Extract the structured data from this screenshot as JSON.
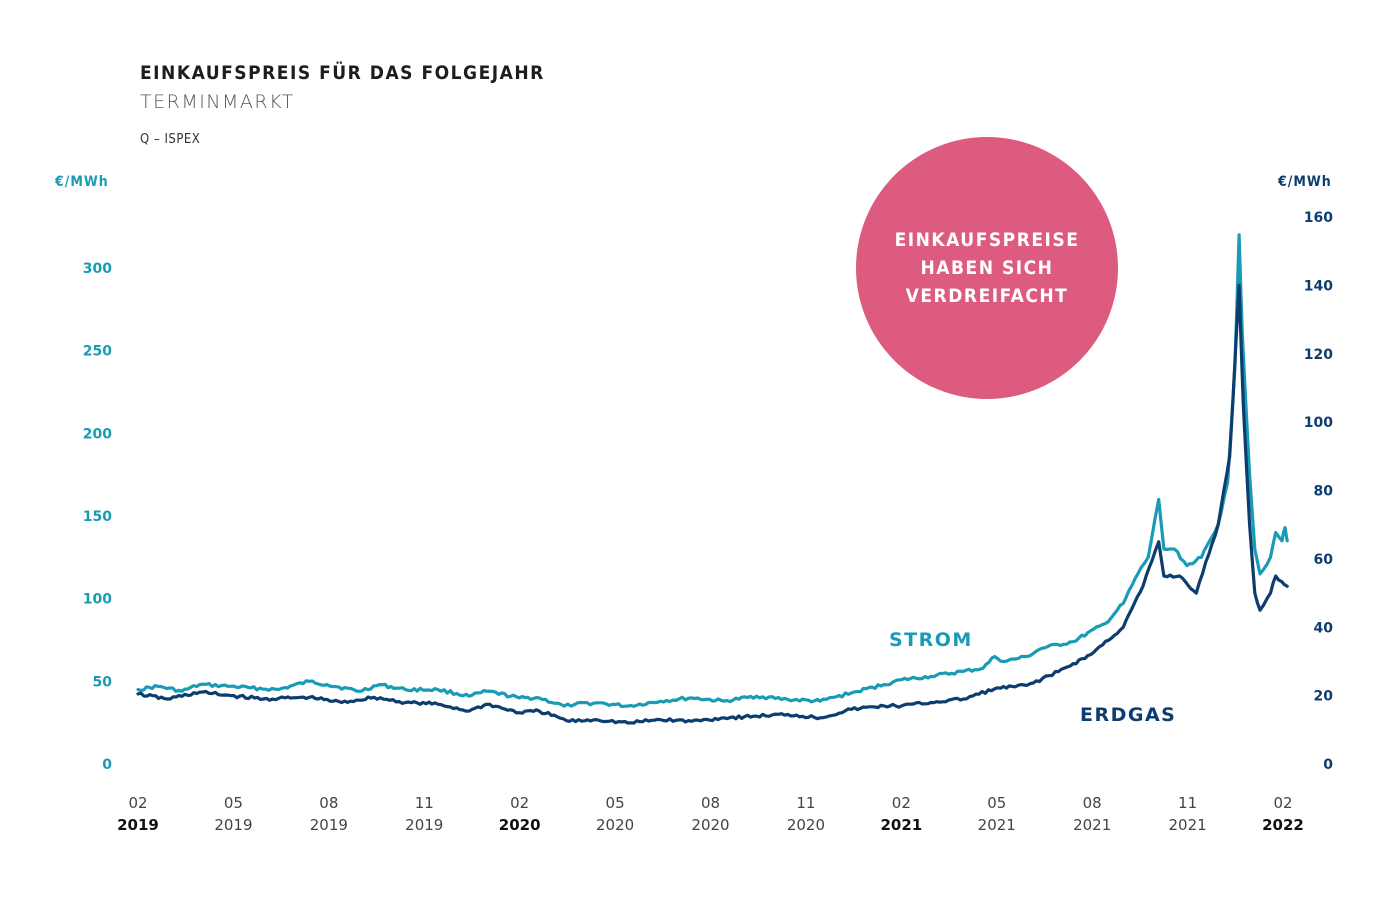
{
  "chart_data": {
    "type": "line",
    "title": "EINKAUFSPREIS FÜR DAS FOLGEJAHR",
    "subtitle": "TERMINMARKT",
    "source": "Q – ISPEX",
    "y_left_label": "€/MWh",
    "y_right_label": "€/MWh",
    "y_left_ticks": [
      0,
      50,
      100,
      150,
      200,
      250,
      300
    ],
    "y_right_ticks": [
      0,
      20,
      40,
      60,
      80,
      100,
      120,
      140,
      160
    ],
    "ylim_left": [
      0,
      330
    ],
    "ylim_right": [
      0,
      165
    ],
    "x_ticks": [
      {
        "month": "02",
        "year": "2019",
        "year_bold": true
      },
      {
        "month": "05",
        "year": "2019",
        "year_bold": false
      },
      {
        "month": "08",
        "year": "2019",
        "year_bold": false
      },
      {
        "month": "11",
        "year": "2019",
        "year_bold": false
      },
      {
        "month": "02",
        "year": "2020",
        "year_bold": true
      },
      {
        "month": "05",
        "year": "2020",
        "year_bold": false
      },
      {
        "month": "08",
        "year": "2020",
        "year_bold": false
      },
      {
        "month": "11",
        "year": "2020",
        "year_bold": false
      },
      {
        "month": "02",
        "year": "2021",
        "year_bold": true
      },
      {
        "month": "05",
        "year": "2021",
        "year_bold": false
      },
      {
        "month": "08",
        "year": "2021",
        "year_bold": false
      },
      {
        "month": "11",
        "year": "2021",
        "year_bold": false
      },
      {
        "month": "02",
        "year": "2022",
        "year_bold": true
      }
    ],
    "series": [
      {
        "name": "STROM",
        "axis": "left",
        "color": "#1a9bb5",
        "points": [
          [
            "2019-02-01",
            45
          ],
          [
            "2019-02-20",
            47
          ],
          [
            "2019-03-15",
            44
          ],
          [
            "2019-04-01",
            48
          ],
          [
            "2019-05-01",
            47
          ],
          [
            "2019-05-20",
            46
          ],
          [
            "2019-06-15",
            45
          ],
          [
            "2019-07-15",
            50
          ],
          [
            "2019-08-01",
            48
          ],
          [
            "2019-09-01",
            44
          ],
          [
            "2019-09-20",
            48
          ],
          [
            "2019-10-15",
            45
          ],
          [
            "2019-11-15",
            45
          ],
          [
            "2019-12-15",
            41
          ],
          [
            "2020-01-01",
            44
          ],
          [
            "2020-02-01",
            40
          ],
          [
            "2020-02-20",
            40
          ],
          [
            "2020-03-15",
            35
          ],
          [
            "2020-03-25",
            36
          ],
          [
            "2020-04-15",
            37
          ],
          [
            "2020-05-15",
            35
          ],
          [
            "2020-06-15",
            38
          ],
          [
            "2020-07-15",
            40
          ],
          [
            "2020-08-15",
            38
          ],
          [
            "2020-09-15",
            41
          ],
          [
            "2020-10-15",
            39
          ],
          [
            "2020-11-15",
            38
          ],
          [
            "2020-12-15",
            43
          ],
          [
            "2021-01-15",
            48
          ],
          [
            "2021-02-01",
            51
          ],
          [
            "2021-03-01",
            53
          ],
          [
            "2021-04-01",
            56
          ],
          [
            "2021-04-20",
            58
          ],
          [
            "2021-05-01",
            65
          ],
          [
            "2021-05-10",
            62
          ],
          [
            "2021-06-01",
            65
          ],
          [
            "2021-06-15",
            70
          ],
          [
            "2021-07-15",
            74
          ],
          [
            "2021-08-15",
            85
          ],
          [
            "2021-09-01",
            97
          ],
          [
            "2021-09-15",
            115
          ],
          [
            "2021-09-25",
            125
          ],
          [
            "2021-10-05",
            160
          ],
          [
            "2021-10-10",
            130
          ],
          [
            "2021-10-20",
            130
          ],
          [
            "2021-11-01",
            120
          ],
          [
            "2021-11-15",
            125
          ],
          [
            "2021-12-01",
            145
          ],
          [
            "2021-12-10",
            170
          ],
          [
            "2021-12-17",
            240
          ],
          [
            "2021-12-21",
            320
          ],
          [
            "2021-12-24",
            260
          ],
          [
            "2021-12-31",
            175
          ],
          [
            "2022-01-05",
            130
          ],
          [
            "2022-01-10",
            115
          ],
          [
            "2022-01-20",
            125
          ],
          [
            "2022-01-25",
            140
          ],
          [
            "2022-01-31",
            135
          ],
          [
            "2022-02-03",
            143
          ],
          [
            "2022-02-05",
            135
          ]
        ]
      },
      {
        "name": "ERDGAS",
        "axis": "right",
        "color": "#0d3d6e",
        "points": [
          [
            "2019-02-01",
            20.5
          ],
          [
            "2019-03-01",
            19.0
          ],
          [
            "2019-04-01",
            21.0
          ],
          [
            "2019-05-01",
            20.0
          ],
          [
            "2019-06-01",
            19.0
          ],
          [
            "2019-07-15",
            19.5
          ],
          [
            "2019-08-15",
            18.0
          ],
          [
            "2019-09-15",
            19.5
          ],
          [
            "2019-10-15",
            18.0
          ],
          [
            "2019-11-15",
            17.5
          ],
          [
            "2019-12-15",
            15.5
          ],
          [
            "2020-01-01",
            17.5
          ],
          [
            "2020-02-01",
            15.0
          ],
          [
            "2020-02-20",
            15.5
          ],
          [
            "2020-03-20",
            12.5
          ],
          [
            "2020-04-15",
            13.0
          ],
          [
            "2020-05-15",
            12.0
          ],
          [
            "2020-06-15",
            13.0
          ],
          [
            "2020-07-15",
            12.5
          ],
          [
            "2020-08-15",
            13.5
          ],
          [
            "2020-09-15",
            14.0
          ],
          [
            "2020-10-15",
            14.5
          ],
          [
            "2020-11-15",
            13.5
          ],
          [
            "2020-12-15",
            16.0
          ],
          [
            "2021-01-15",
            17.0
          ],
          [
            "2021-02-01",
            17.0
          ],
          [
            "2021-03-01",
            18.0
          ],
          [
            "2021-04-01",
            19.0
          ],
          [
            "2021-05-01",
            22.0
          ],
          [
            "2021-06-01",
            23.0
          ],
          [
            "2021-07-01",
            27.0
          ],
          [
            "2021-08-01",
            32.0
          ],
          [
            "2021-09-01",
            40.0
          ],
          [
            "2021-09-20",
            52.0
          ],
          [
            "2021-10-05",
            65.0
          ],
          [
            "2021-10-10",
            55.0
          ],
          [
            "2021-10-25",
            55.0
          ],
          [
            "2021-11-10",
            50.0
          ],
          [
            "2021-12-01",
            70.0
          ],
          [
            "2021-12-12",
            90.0
          ],
          [
            "2021-12-21",
            140.0
          ],
          [
            "2021-12-25",
            105.0
          ],
          [
            "2021-12-31",
            70.0
          ],
          [
            "2022-01-05",
            50.0
          ],
          [
            "2022-01-10",
            45.0
          ],
          [
            "2022-01-20",
            50.0
          ],
          [
            "2022-01-25",
            55.0
          ],
          [
            "2022-02-05",
            52.0
          ]
        ]
      }
    ],
    "series_labels": {
      "strom": "STROM",
      "erdgas": "ERDGAS"
    },
    "callout_lines": [
      "EINKAUFSPREISE",
      "HABEN SICH",
      "VERDREIFACHT"
    ],
    "colors": {
      "strom": "#1a9bb5",
      "erdgas": "#0d3d6e",
      "callout": "#dd5b7e"
    }
  }
}
